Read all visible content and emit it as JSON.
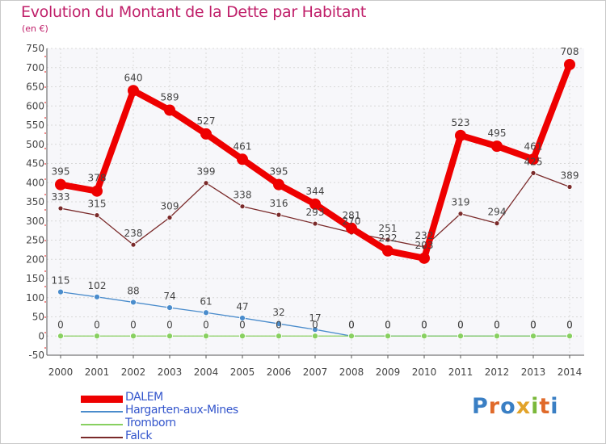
{
  "header": {
    "title": "Evolution du Montant de la Dette par Habitant",
    "unit": "(en €)"
  },
  "logo": {
    "text": "Proxiti",
    "letter_colors": [
      "#3a7fc4",
      "#e06a2a",
      "#3a7fc4",
      "#e2a32a",
      "#7ab83a",
      "#e06a2a",
      "#3a7fc4"
    ]
  },
  "chart_data": {
    "type": "line",
    "title": "Evolution du Montant de la Dette par Habitant",
    "ylabel": "(en €)",
    "xlabel": "",
    "x": [
      "2000",
      "2001",
      "2002",
      "2003",
      "2004",
      "2005",
      "2006",
      "2007",
      "2008",
      "2009",
      "2010",
      "2011",
      "2012",
      "2013",
      "2014"
    ],
    "ylim": [
      -50,
      750
    ],
    "yticks": [
      -50,
      0,
      50,
      100,
      150,
      200,
      250,
      300,
      350,
      400,
      450,
      500,
      550,
      600,
      650,
      700,
      750
    ],
    "grid": true,
    "legend_position": "bottom-left",
    "series": [
      {
        "name": "DALEM",
        "color": "#ee0000",
        "values": [
          395,
          378,
          640,
          589,
          527,
          461,
          395,
          344,
          281,
          222,
          203,
          523,
          495,
          461,
          708
        ],
        "labels": [
          "395",
          "378",
          "640",
          "589",
          "527",
          "461",
          "395",
          "344",
          "281",
          "222",
          "203",
          "523",
          "495",
          "461",
          "708"
        ]
      },
      {
        "name": "Hargarten-aux-Mines",
        "color": "#4a8ccc",
        "values": [
          115,
          102,
          88,
          74,
          61,
          47,
          32,
          17,
          0,
          0,
          0,
          0,
          0,
          0,
          0
        ],
        "labels": [
          "115",
          "102",
          "88",
          "74",
          "61",
          "47",
          "32",
          "17",
          "0",
          "0",
          "0",
          "0",
          "0",
          "0",
          "0"
        ]
      },
      {
        "name": "Tromborn",
        "color": "#88d060",
        "values": [
          0,
          0,
          0,
          0,
          0,
          0,
          0,
          0,
          0,
          0,
          0,
          0,
          0,
          0,
          0
        ],
        "labels": [
          "0",
          "0",
          "0",
          "0",
          "0",
          "0",
          "0",
          "0",
          "0",
          "0",
          "0",
          "0",
          "0",
          "0",
          "0"
        ]
      },
      {
        "name": "Falck",
        "color": "#7a2a2a",
        "values": [
          333,
          315,
          238,
          309,
          399,
          338,
          316,
          293,
          270,
          251,
          232,
          319,
          294,
          425,
          389
        ],
        "labels": [
          "333",
          "315",
          "238",
          "309",
          "399",
          "338",
          "316",
          "293",
          "270",
          "251",
          "232",
          "319",
          "294",
          "425",
          "389"
        ]
      }
    ]
  }
}
